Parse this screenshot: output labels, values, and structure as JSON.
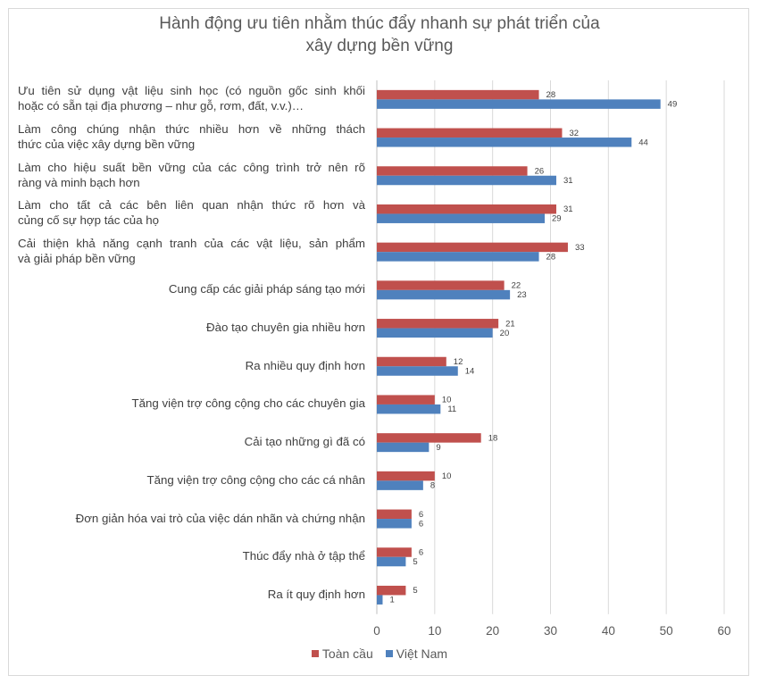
{
  "chart_data": {
    "type": "bar",
    "orientation": "horizontal",
    "title_lines": [
      "Hành động ưu tiên nhằm thúc đẩy nhanh sự phát triển của",
      "xây dựng bền vững"
    ],
    "categories": [
      "Ưu tiên sử dụng vật liệu sinh học (có nguồn gốc sinh khối hoặc có sẵn tại địa phương – như gỗ, rơm, đất, v.v.)…",
      "Làm công chúng nhận thức nhiều hơn về những thách thức của việc xây dựng bền vững",
      "Làm cho hiệu suất bền vững của các công trình trở nên rõ ràng và minh bạch hơn",
      "Làm cho tất cả các bên liên quan nhận thức rõ hơn và củng cố sự hợp tác của họ",
      "Cải thiện khả năng cạnh tranh của các vật liệu, sản phẩm và giải pháp bền vững",
      "Cung cấp các giải pháp sáng tạo mới",
      "Đào tạo chuyên gia nhiều hơn",
      "Ra nhiều quy định hơn",
      "Tăng viện trợ công cộng cho các chuyên gia",
      "Cải tạo những gì đã có",
      "Tăng viện trợ công cộng cho các cá nhân",
      "Đơn giản hóa vai trò của việc dán nhãn và chứng nhận",
      "Thúc đẩy nhà ở tập thể",
      "Ra ít quy định hơn"
    ],
    "category_lines": [
      [
        "Ưu tiên sử dụng vật liệu sinh học (có nguồn gốc sinh khối",
        "hoặc có sẵn tại địa phương – như gỗ, rơm, đất, v.v.)…"
      ],
      [
        "Làm công chúng nhận thức nhiều hơn về những thách",
        "thức của việc xây dựng bền vững"
      ],
      [
        "Làm cho hiệu suất bền vững của các công trình trở nên rõ",
        "ràng và minh bạch hơn"
      ],
      [
        "Làm cho tất cả các bên liên quan nhận thức rõ hơn và",
        "củng cố sự hợp tác của họ"
      ],
      [
        "Cải thiện khả năng cạnh tranh của các vật liệu, sản phẩm",
        "và giải pháp bền vững"
      ],
      [
        "Cung cấp các giải pháp sáng tạo mới"
      ],
      [
        "Đào tạo chuyên gia nhiều hơn"
      ],
      [
        "Ra nhiều quy định hơn"
      ],
      [
        "Tăng viện trợ công cộng cho các chuyên gia"
      ],
      [
        "Cải tạo những gì đã có"
      ],
      [
        "Tăng viện trợ công cộng cho các cá nhân"
      ],
      [
        "Đơn giản hóa vai trò của việc dán nhãn và chứng nhận"
      ],
      [
        "Thúc đẩy nhà ở tập thể"
      ],
      [
        "Ra ít quy định hơn"
      ]
    ],
    "series": [
      {
        "name": "Toàn cầu",
        "color": "#c0504d",
        "values": [
          28,
          32,
          26,
          31,
          33,
          22,
          21,
          12,
          10,
          18,
          10,
          6,
          6,
          5
        ]
      },
      {
        "name": "Việt Nam",
        "color": "#4f81bd",
        "values": [
          49,
          44,
          31,
          29,
          28,
          23,
          20,
          14,
          11,
          9,
          8,
          6,
          5,
          1
        ]
      }
    ],
    "xlim": [
      0,
      60
    ],
    "xticks": [
      0,
      10,
      20,
      30,
      40,
      50,
      60
    ],
    "grid": true,
    "legend_position": "bottom"
  }
}
